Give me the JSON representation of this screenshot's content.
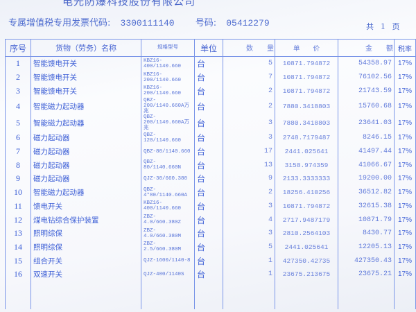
{
  "header": {
    "company": "电光防爆科技股份有限公司",
    "invoice_code_label": "专属增值税专用发票代码:",
    "invoice_code": "3300111140",
    "number_label": "号码:",
    "number": "05412279",
    "pages_prefix": "共",
    "pages_count": "1",
    "pages_suffix": "页"
  },
  "table": {
    "columns": [
      "序号",
      "货物（劳务）名称",
      "规格型号",
      "单位",
      "数　　量",
      "单　　价",
      "金　　额",
      "税率"
    ],
    "rows": [
      {
        "seq": "1",
        "name": "智能馈电开关",
        "spec": "KBZ16-400/1140.660",
        "unit": "台",
        "qty": "5",
        "price": "10871.794872",
        "amount": "54358.97",
        "tax": "17%"
      },
      {
        "seq": "2",
        "name": "智能馈电开关",
        "spec": "KBZ16-200/1140.660",
        "unit": "台",
        "qty": "7",
        "price": "10871.794872",
        "amount": "76102.56",
        "tax": "17%"
      },
      {
        "seq": "3",
        "name": "智能馈电开关",
        "spec": "KBZ16-200/1140.660",
        "unit": "台",
        "qty": "2",
        "price": "10871.794872",
        "amount": "21743.59",
        "tax": "17%"
      },
      {
        "seq": "4",
        "name": "智能磁力起动器",
        "spec": "QBZ-200/1140.660A万兆",
        "unit": "台",
        "qty": "2",
        "price": "7880.3418803",
        "amount": "15760.68",
        "tax": "17%"
      },
      {
        "seq": "5",
        "name": "智能磁力起动器",
        "spec": "QBZ-200/1140.660A万兆",
        "unit": "台",
        "qty": "3",
        "price": "7880.3418803",
        "amount": "23641.03",
        "tax": "17%"
      },
      {
        "seq": "6",
        "name": "磁力起动器",
        "spec": "QBZ-120/1140.660",
        "unit": "台",
        "qty": "3",
        "price": "2748.7179487",
        "amount": "8246.15",
        "tax": "17%"
      },
      {
        "seq": "7",
        "name": "磁力起动器",
        "spec": "QBZ-80/1140.660",
        "unit": "台",
        "qty": "17",
        "price": "2441.025641",
        "amount": "41497.44",
        "tax": "17%"
      },
      {
        "seq": "8",
        "name": "磁力起动器",
        "spec": "QBZ-80/1140.660N",
        "unit": "台",
        "qty": "13",
        "price": "3158.974359",
        "amount": "41066.67",
        "tax": "17%"
      },
      {
        "seq": "9",
        "name": "磁力起动器",
        "spec": "QJZ-30/660.380",
        "unit": "台",
        "qty": "9",
        "price": "2133.3333333",
        "amount": "19200.00",
        "tax": "17%"
      },
      {
        "seq": "10",
        "name": "智能磁力起动器",
        "spec": "QBZ-4*80/1140.660A",
        "unit": "台",
        "qty": "2",
        "price": "18256.410256",
        "amount": "36512.82",
        "tax": "17%"
      },
      {
        "seq": "11",
        "name": "馈电开关",
        "spec": "KBZ16-400/1140.660",
        "unit": "台",
        "qty": "3",
        "price": "10871.794872",
        "amount": "32615.38",
        "tax": "17%"
      },
      {
        "seq": "12",
        "name": "煤电钻综合保护装置",
        "spec": "ZBZ-4.0/660.380Z",
        "unit": "台",
        "qty": "4",
        "price": "2717.9487179",
        "amount": "10871.79",
        "tax": "17%"
      },
      {
        "seq": "13",
        "name": "照明综保",
        "spec": "ZBZ-4.0/660.380M",
        "unit": "台",
        "qty": "3",
        "price": "2810.2564103",
        "amount": "8430.77",
        "tax": "17%"
      },
      {
        "seq": "14",
        "name": "照明综保",
        "spec": "ZBZ-2.5/660.380M",
        "unit": "台",
        "qty": "5",
        "price": "2441.025641",
        "amount": "12205.13",
        "tax": "17%"
      },
      {
        "seq": "15",
        "name": "组合开关",
        "spec": "QJZ-1600/1140-8",
        "unit": "台",
        "qty": "1",
        "price": "427350.42735",
        "amount": "427350.43",
        "tax": "17%"
      },
      {
        "seq": "16",
        "name": "双速开关",
        "spec": "QJZ-400/1140S",
        "unit": "台",
        "qty": "1",
        "price": "23675.213675",
        "amount": "23675.21",
        "tax": "17%"
      }
    ]
  }
}
